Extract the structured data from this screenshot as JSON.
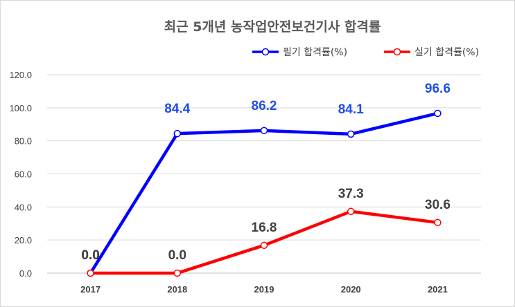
{
  "chart_data": {
    "type": "line",
    "title": "최근 5개년 농작업안전보건기사 합격률",
    "categories": [
      "2017",
      "2018",
      "2019",
      "2020",
      "2021"
    ],
    "ylim": [
      0,
      120
    ],
    "yticks": [
      "0.0",
      "20.0",
      "40.0",
      "60.0",
      "80.0",
      "100.0",
      "120.0"
    ],
    "ytick_values": [
      0,
      20,
      40,
      60,
      80,
      100,
      120
    ],
    "grid": true,
    "legend_position": "top-right",
    "series": [
      {
        "name": "필기 합격률(%)",
        "values": [
          0.0,
          84.4,
          86.2,
          84.1,
          96.6
        ],
        "labels": [
          "0.0",
          "84.4",
          "86.2",
          "84.1",
          "96.6"
        ],
        "color": "#0000ff",
        "label_colors": [
          "#404040",
          "#1f4ee8",
          "#1f4ee8",
          "#1f4ee8",
          "#1f4ee8"
        ]
      },
      {
        "name": "실기 합격률(%)",
        "values": [
          0.0,
          0.0,
          16.8,
          37.3,
          30.6
        ],
        "labels": [
          "0.0",
          "0.0",
          "16.8",
          "37.3",
          "30.6"
        ],
        "color": "#ff0000",
        "label_colors": [
          "#404040",
          "#404040",
          "#404040",
          "#404040",
          "#404040"
        ]
      }
    ]
  }
}
